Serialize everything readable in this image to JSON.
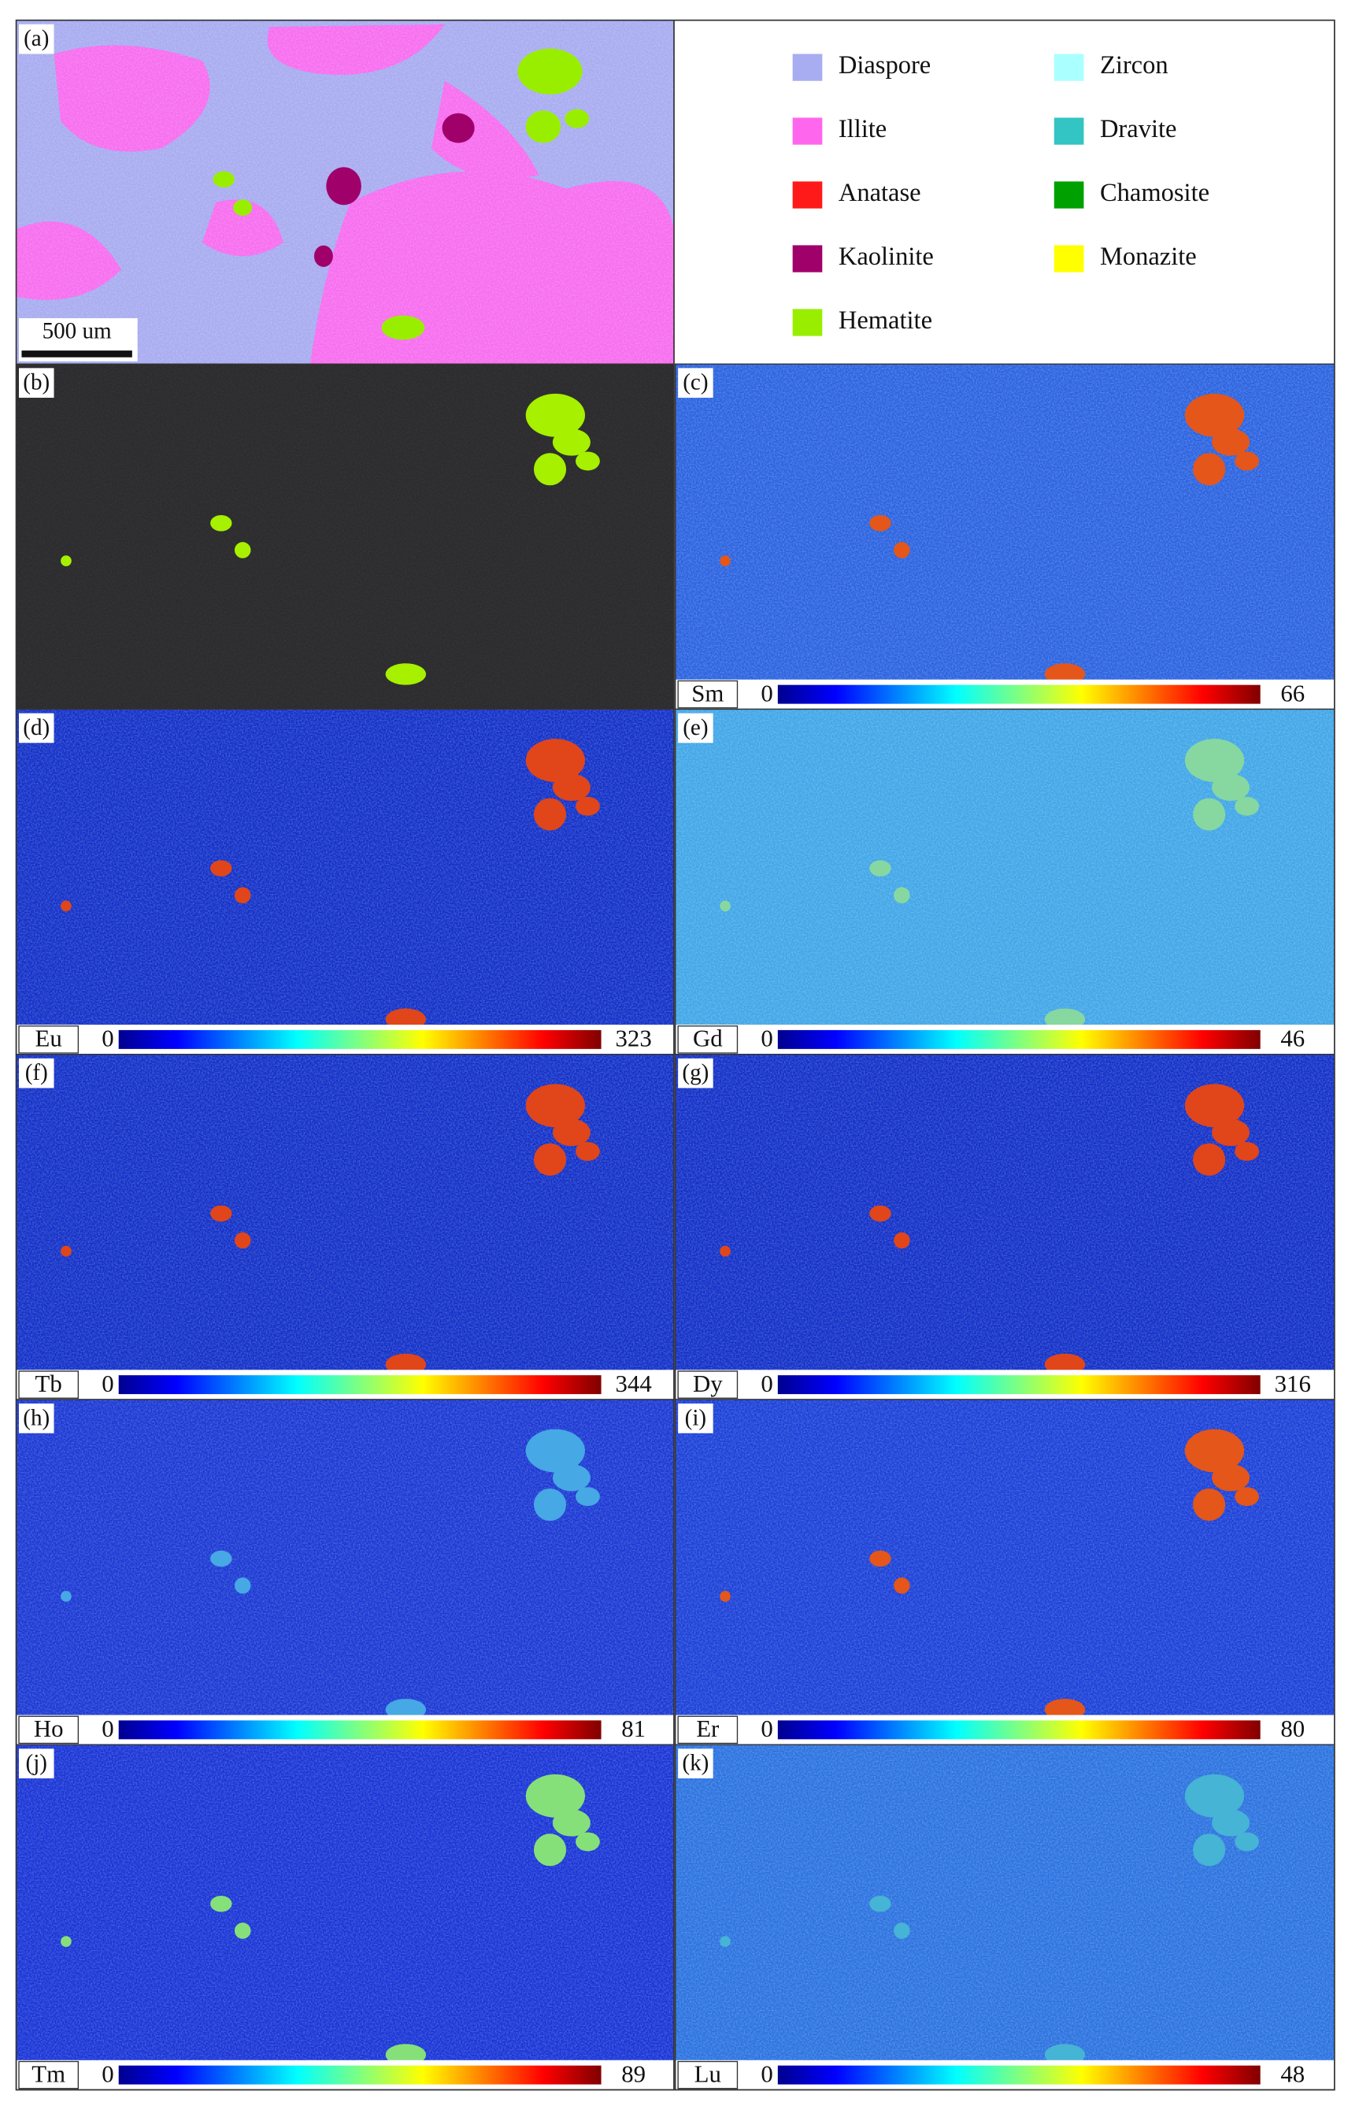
{
  "panel_a": {
    "label": "(a)",
    "scale_bar": "500 um",
    "legend": [
      {
        "name": "Diaspore",
        "color": "#a8acf0"
      },
      {
        "name": "Illite",
        "color": "#ff66ee"
      },
      {
        "name": "Anatase",
        "color": "#ff1a1a"
      },
      {
        "name": "Kaolinite",
        "color": "#a0006a"
      },
      {
        "name": "Hematite",
        "color": "#99ee00"
      },
      {
        "name": "Zircon",
        "color": "#aaffff"
      },
      {
        "name": "Dravite",
        "color": "#33c4c4"
      },
      {
        "name": "Chamosite",
        "color": "#00a000"
      },
      {
        "name": "Monazite",
        "color": "#ffff00"
      }
    ]
  },
  "maps": [
    {
      "label": "(b)"
    },
    {
      "label": "(c)",
      "element": "Sm",
      "min": 0,
      "max": 66
    },
    {
      "label": "(d)",
      "element": "Eu",
      "min": 0,
      "max": 323
    },
    {
      "label": "(e)",
      "element": "Gd",
      "min": 0,
      "max": 46
    },
    {
      "label": "(f)",
      "element": "Tb",
      "min": 0,
      "max": 344
    },
    {
      "label": "(g)",
      "element": "Dy",
      "min": 0,
      "max": 316
    },
    {
      "label": "(h)",
      "element": "Ho",
      "min": 0,
      "max": 81
    },
    {
      "label": "(i)",
      "element": "Er",
      "min": 0,
      "max": 80
    },
    {
      "label": "(j)",
      "element": "Tm",
      "min": 0,
      "max": 89
    },
    {
      "label": "(k)",
      "element": "Lu",
      "min": 0,
      "max": 48
    }
  ]
}
